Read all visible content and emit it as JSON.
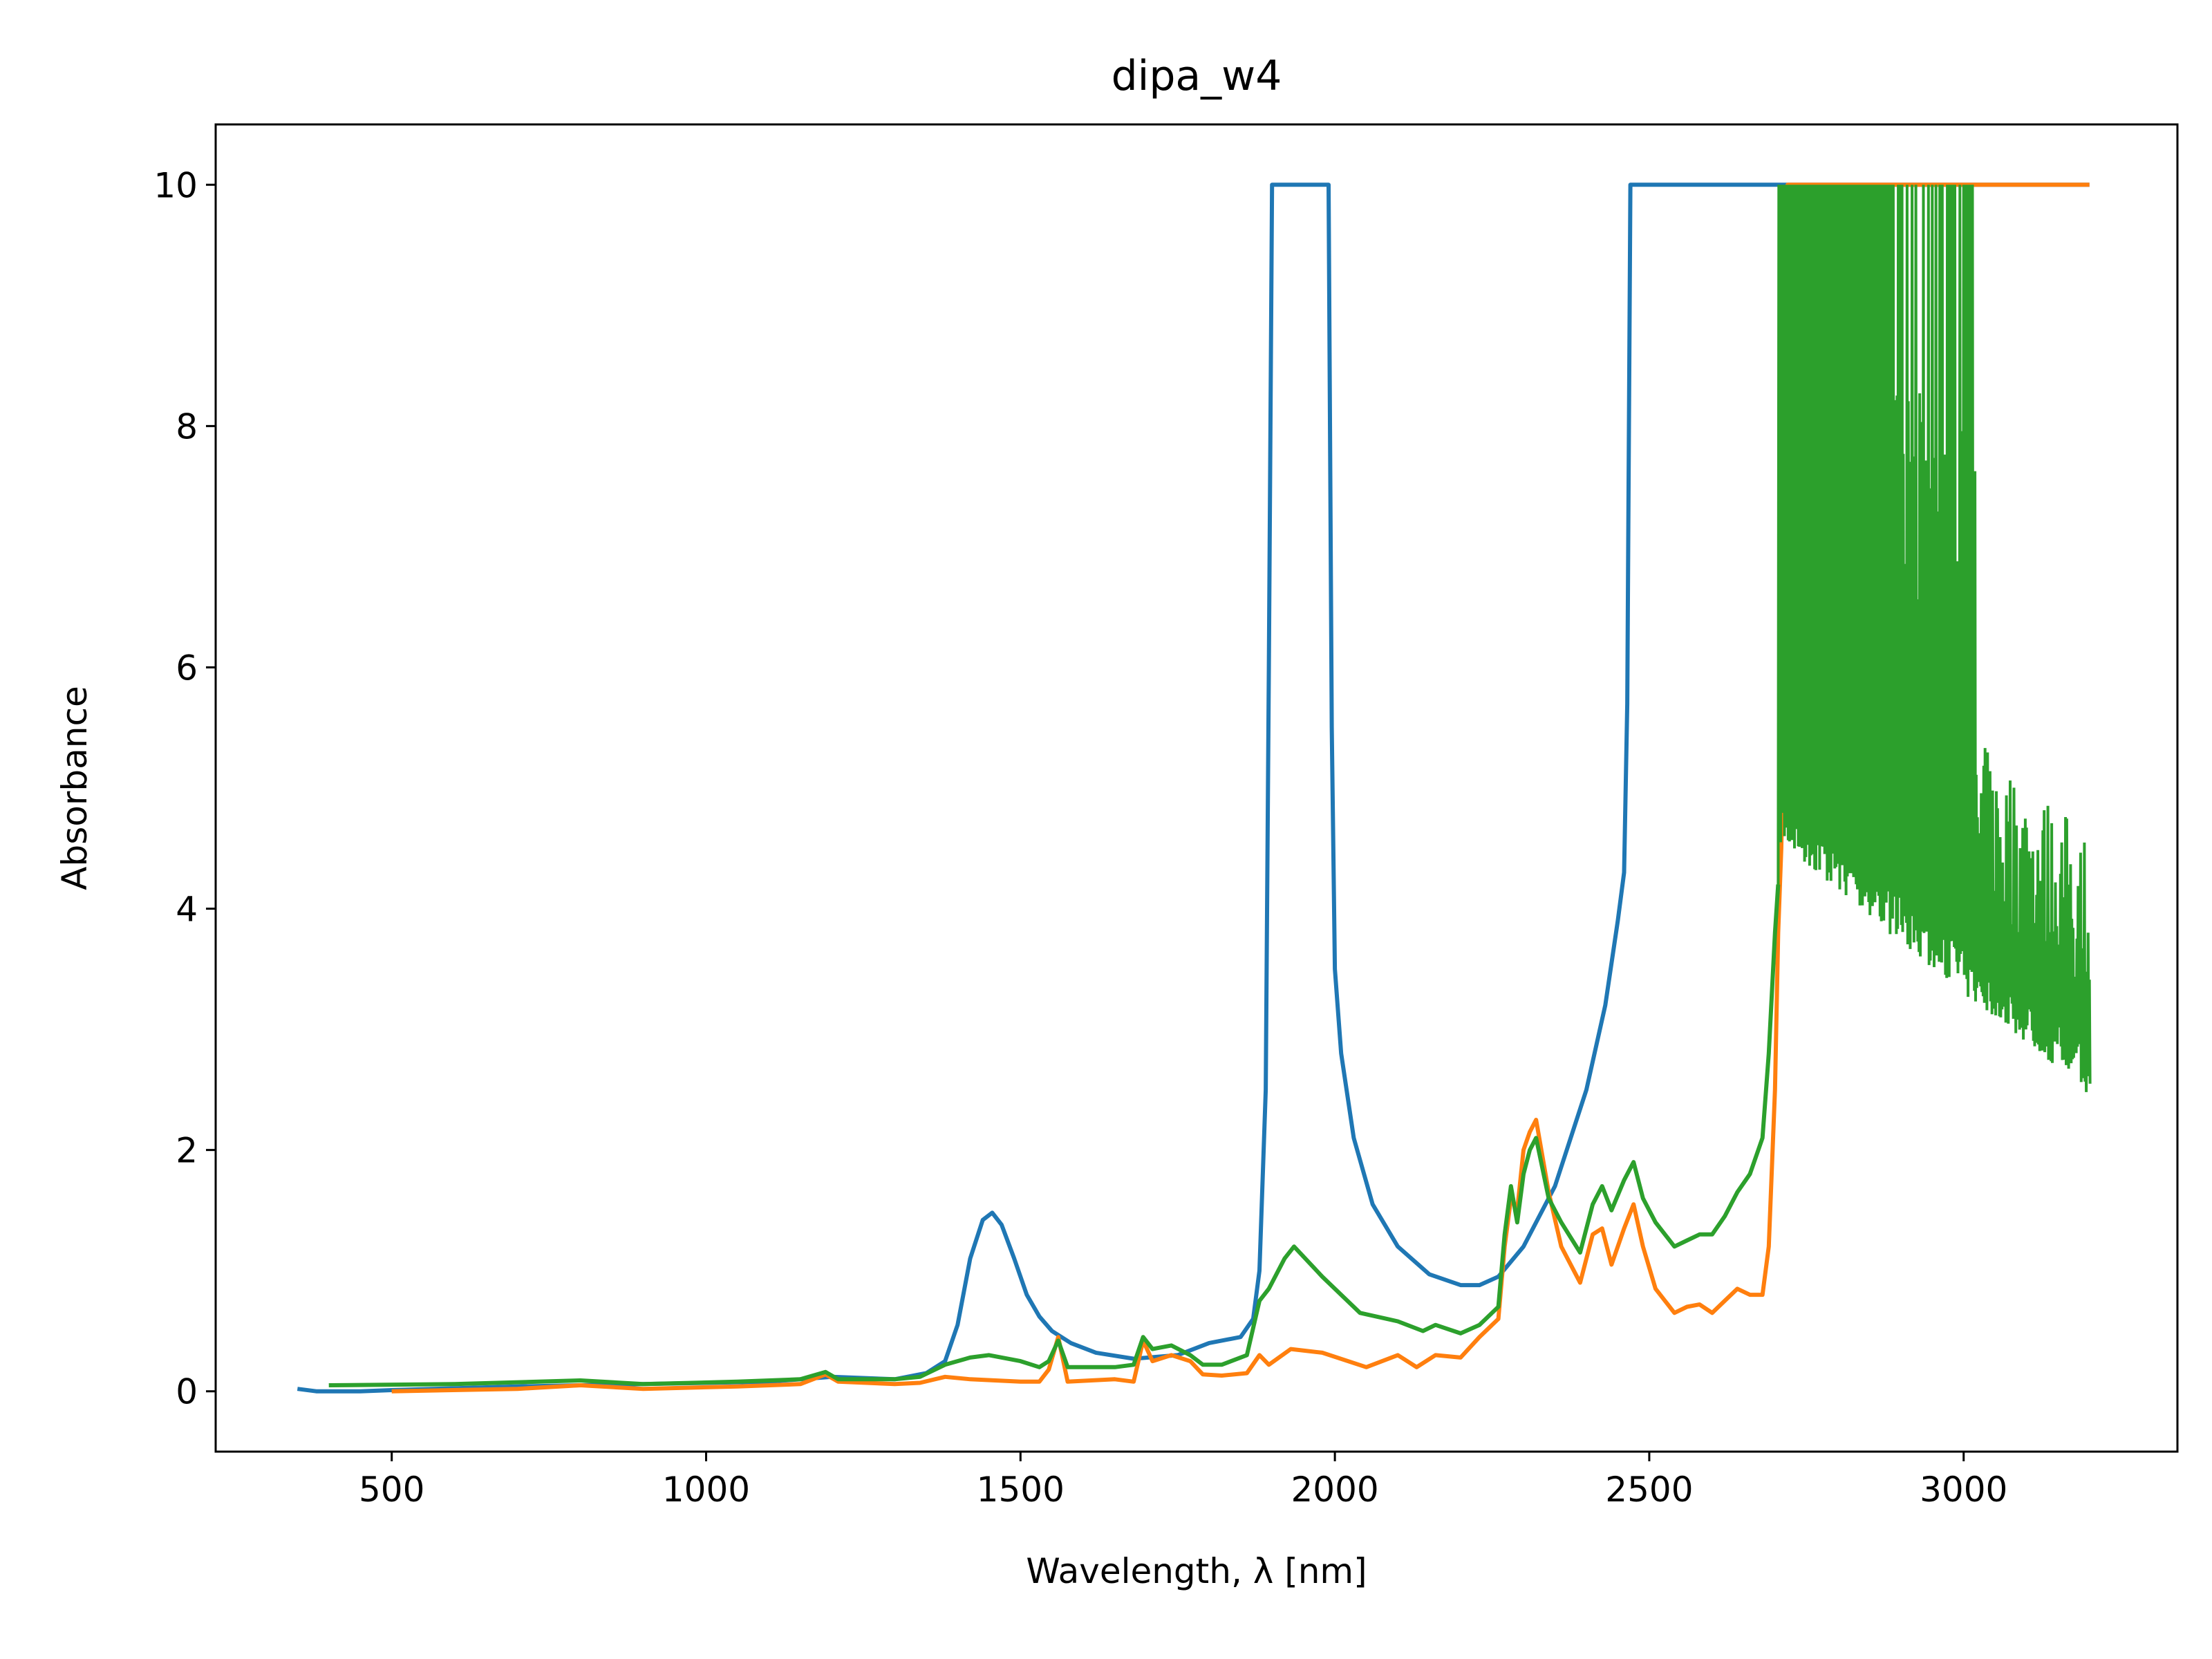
{
  "chart_data": {
    "type": "line",
    "title": "dipa_w4",
    "xlabel": "Wavelength, λ [nm]",
    "ylabel": "Absorbance",
    "xlim": [
      220,
      3340
    ],
    "ylim": [
      -0.5,
      10.5
    ],
    "xticks": [
      500,
      1000,
      1500,
      2000,
      2500,
      3000
    ],
    "yticks": [
      0,
      2,
      4,
      6,
      8,
      10
    ],
    "grid": false,
    "series": [
      {
        "color": "#1f77b4",
        "x": [
          350,
          380,
          450,
          500,
          700,
          900,
          1100,
          1200,
          1300,
          1350,
          1380,
          1400,
          1420,
          1440,
          1455,
          1470,
          1490,
          1510,
          1530,
          1550,
          1580,
          1620,
          1680,
          1750,
          1800,
          1850,
          1870,
          1880,
          1890,
          1895,
          1900,
          1905,
          1990,
          1995,
          2000,
          2010,
          2030,
          2060,
          2100,
          2150,
          2200,
          2230,
          2260,
          2300,
          2350,
          2400,
          2430,
          2450,
          2460,
          2465,
          2470,
          3200
        ],
        "y": [
          0.02,
          0.0,
          0.0,
          0.01,
          0.04,
          0.06,
          0.08,
          0.12,
          0.1,
          0.15,
          0.25,
          0.55,
          1.1,
          1.42,
          1.48,
          1.38,
          1.1,
          0.8,
          0.62,
          0.5,
          0.4,
          0.32,
          0.27,
          0.3,
          0.4,
          0.45,
          0.6,
          1.0,
          2.5,
          6.0,
          10.0,
          10.0,
          10.0,
          5.5,
          3.5,
          2.8,
          2.1,
          1.55,
          1.2,
          0.97,
          0.88,
          0.88,
          0.95,
          1.2,
          1.7,
          2.5,
          3.2,
          3.9,
          4.3,
          5.7,
          10.0,
          10.0
        ]
      },
      {
        "color": "#ff7f0e",
        "x": [
          500,
          700,
          800,
          900,
          1050,
          1150,
          1190,
          1210,
          1300,
          1340,
          1380,
          1420,
          1500,
          1530,
          1545,
          1560,
          1575,
          1650,
          1680,
          1695,
          1710,
          1740,
          1770,
          1790,
          1820,
          1860,
          1880,
          1895,
          1930,
          1980,
          2050,
          2100,
          2130,
          2160,
          2200,
          2230,
          2260,
          2270,
          2280,
          2290,
          2300,
          2310,
          2320,
          2340,
          2360,
          2390,
          2410,
          2425,
          2440,
          2460,
          2475,
          2490,
          2510,
          2540,
          2560,
          2580,
          2600,
          2620,
          2640,
          2660,
          2680,
          2690,
          2700,
          2705,
          2710,
          2715,
          2720,
          3200
        ],
        "y": [
          0.0,
          0.02,
          0.05,
          0.02,
          0.04,
          0.06,
          0.14,
          0.08,
          0.06,
          0.07,
          0.12,
          0.1,
          0.08,
          0.08,
          0.18,
          0.45,
          0.08,
          0.1,
          0.08,
          0.42,
          0.25,
          0.3,
          0.25,
          0.14,
          0.13,
          0.15,
          0.3,
          0.22,
          0.35,
          0.32,
          0.2,
          0.3,
          0.2,
          0.3,
          0.28,
          0.45,
          0.6,
          1.2,
          1.6,
          1.5,
          2.0,
          2.15,
          2.25,
          1.65,
          1.2,
          0.9,
          1.3,
          1.35,
          1.05,
          1.35,
          1.55,
          1.2,
          0.85,
          0.65,
          0.7,
          0.72,
          0.65,
          0.75,
          0.85,
          0.8,
          0.8,
          1.2,
          2.5,
          3.8,
          4.5,
          6.0,
          10.0,
          10.0
        ]
      },
      {
        "color": "#2ca02c",
        "x": [
          400,
          600,
          800,
          900,
          1050,
          1150,
          1190,
          1210,
          1300,
          1340,
          1380,
          1420,
          1450,
          1500,
          1530,
          1545,
          1560,
          1575,
          1650,
          1680,
          1695,
          1710,
          1740,
          1770,
          1790,
          1820,
          1860,
          1880,
          1895,
          1920,
          1935,
          1980,
          2040,
          2100,
          2140,
          2160,
          2200,
          2230,
          2260,
          2270,
          2280,
          2290,
          2300,
          2310,
          2320,
          2340,
          2360,
          2390,
          2410,
          2425,
          2440,
          2460,
          2475,
          2490,
          2510,
          2540,
          2560,
          2580,
          2600,
          2620,
          2640,
          2660,
          2680,
          2690,
          2700,
          2705
        ],
        "y": [
          0.05,
          0.06,
          0.09,
          0.06,
          0.08,
          0.1,
          0.16,
          0.1,
          0.1,
          0.12,
          0.22,
          0.28,
          0.3,
          0.25,
          0.2,
          0.25,
          0.42,
          0.2,
          0.2,
          0.22,
          0.45,
          0.35,
          0.38,
          0.3,
          0.22,
          0.22,
          0.3,
          0.75,
          0.85,
          1.1,
          1.2,
          0.95,
          0.65,
          0.58,
          0.5,
          0.55,
          0.48,
          0.55,
          0.7,
          1.3,
          1.7,
          1.4,
          1.8,
          2.0,
          2.1,
          1.6,
          1.4,
          1.15,
          1.55,
          1.7,
          1.5,
          1.75,
          1.9,
          1.6,
          1.4,
          1.2,
          1.25,
          1.3,
          1.3,
          1.45,
          1.65,
          1.8,
          2.1,
          2.8,
          3.8,
          4.2
        ]
      }
    ]
  }
}
